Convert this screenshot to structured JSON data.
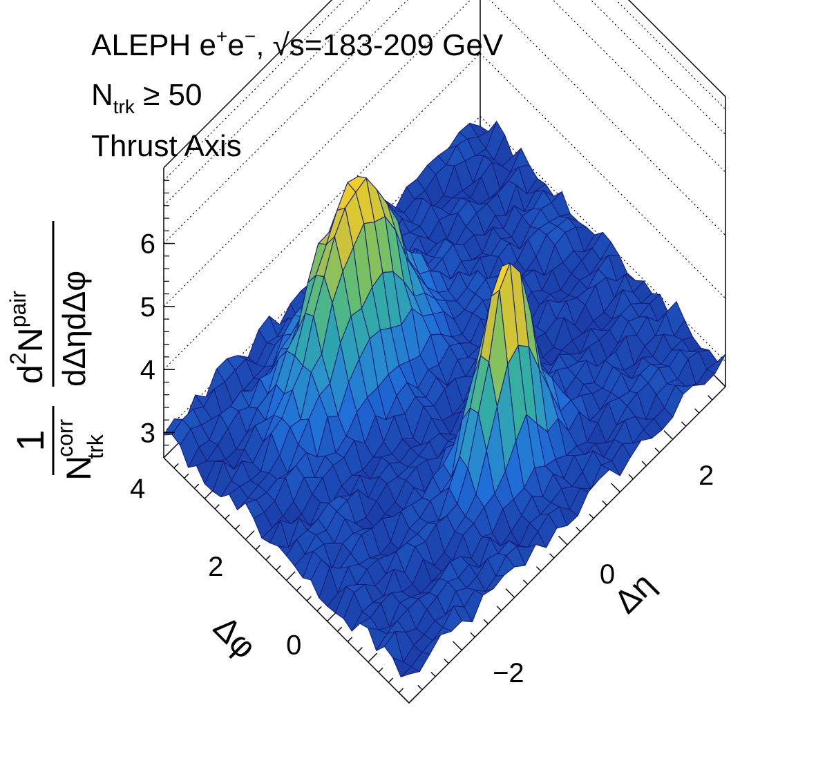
{
  "chart_data": {
    "type": "surface",
    "annotations": {
      "line1": {
        "main": "ALEPH e",
        "sup1": "+",
        "mid": "e",
        "sup2": "−",
        "rest": ", √s=183-209 GeV"
      },
      "line2": {
        "main": "N",
        "sub": "trk",
        "rest": " ≥ 50"
      },
      "line3": "Thrust Axis"
    },
    "zlabel": {
      "num_one": "1",
      "den_N": "N",
      "den_sup": "corr",
      "den_sub": "trk",
      "num2_d": "d",
      "num2_sup2": "2",
      "num2_N": "N",
      "num2_sup": "pair",
      "den2": "dΔηdΔφ"
    },
    "xlabel": "Δη",
    "ylabel": "Δφ",
    "zticks": [
      "3",
      "4",
      "5",
      "6"
    ],
    "zticks_values": [
      3,
      4,
      5,
      6
    ],
    "xticks": [
      "−2",
      "0",
      "2"
    ],
    "xticks_values": [
      -2,
      0,
      2
    ],
    "yticks": [
      "0",
      "2",
      "4"
    ],
    "yticks_values": [
      0,
      2,
      4
    ],
    "xlim": [
      -3.2,
      3.2
    ],
    "ylim": [
      -1.57,
      4.71
    ],
    "zlim": [
      2.6,
      7.2
    ],
    "grid_z": true,
    "colormap": [
      "#1b3ea8",
      "#1f6fd8",
      "#2a95c8",
      "#33aea2",
      "#6cc06a",
      "#c9c23a",
      "#f2cf24",
      "#f8f020"
    ],
    "mesh_color": "#161e7a",
    "surface": {
      "nx": 30,
      "ny": 30,
      "baseline": 3.0,
      "near_side_peak": {
        "deta": 0.0,
        "dphi": 0.0,
        "height": 6.3,
        "width_eta": 0.45,
        "width_phi": 0.32
      },
      "away_side_ridge": {
        "dphi": 3.14,
        "height": 5.9,
        "deta": -0.6,
        "width_eta": 0.75,
        "width_phi": 0.5
      },
      "noise_amplitude": 0.18
    }
  }
}
